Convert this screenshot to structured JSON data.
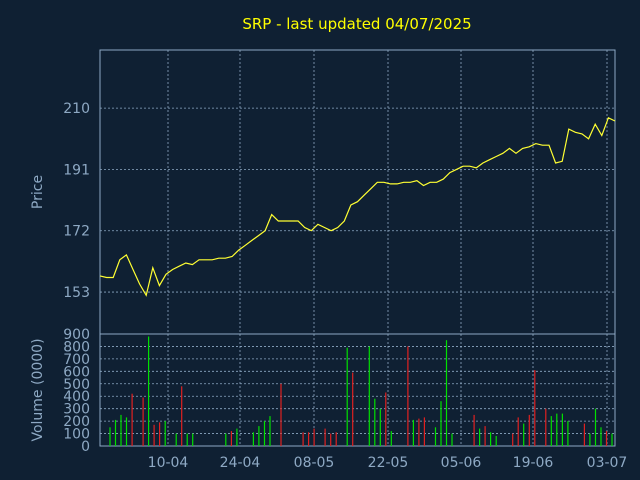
{
  "chart_data": [
    {
      "type": "line",
      "title": "SRP - last updated 04/07/2025",
      "ylabel": "Price",
      "ylim": [
        140,
        228
      ],
      "yticks": [
        153,
        172,
        191,
        210
      ],
      "xticks": [
        "10-04",
        "24-04",
        "08-05",
        "22-05",
        "05-06",
        "19-06",
        "03-07"
      ],
      "grid": true,
      "line_color": "#ffff33",
      "y": [
        158,
        157.5,
        157.5,
        163,
        164.5,
        160,
        155.5,
        152,
        160.5,
        155,
        158.5,
        160,
        161,
        162,
        161.5,
        163,
        163,
        163,
        163.5,
        163.5,
        164,
        166,
        167.5,
        169,
        170.5,
        172,
        177,
        175,
        175,
        175,
        175,
        173,
        172,
        174,
        173,
        172,
        173,
        175,
        180,
        181,
        183,
        185,
        187,
        187,
        186.5,
        186.5,
        187,
        187,
        187.5,
        186,
        187,
        187,
        188,
        190,
        191,
        192,
        192,
        191.5,
        193,
        194,
        195,
        196,
        197.5,
        196,
        197.5,
        198,
        199,
        198.5,
        198.5,
        193,
        193.5,
        203.5,
        202.5,
        202,
        200.5,
        205,
        201.5,
        207,
        206
      ]
    },
    {
      "type": "bar",
      "ylabel": "Volume (0000)",
      "ylim": [
        0,
        900
      ],
      "yticks": [
        0,
        100,
        200,
        300,
        400,
        500,
        600,
        700,
        800,
        900
      ],
      "grid": true,
      "up_color": "#00e000",
      "down_color": "#e02020",
      "values": [
        150,
        210,
        250,
        230,
        420,
        0,
        390,
        880,
        170,
        190,
        200,
        0,
        100,
        480,
        100,
        100,
        0,
        0,
        0,
        0,
        0,
        100,
        120,
        140,
        0,
        0,
        110,
        160,
        200,
        240,
        0,
        500,
        0,
        0,
        0,
        110,
        110,
        140,
        0,
        140,
        100,
        110,
        0,
        790,
        590,
        0,
        0,
        800,
        380,
        300,
        430,
        120,
        0,
        0,
        800,
        210,
        220,
        230,
        0,
        150,
        360,
        850,
        100,
        0,
        0,
        0,
        250,
        140,
        160,
        110,
        80,
        0,
        0,
        100,
        230,
        180,
        250,
        610,
        0,
        300,
        240,
        260,
        260,
        200,
        0,
        0,
        180,
        100,
        300,
        150,
        120,
        100
      ],
      "up": [
        true,
        true,
        true,
        true,
        false,
        false,
        false,
        true,
        false,
        false,
        true,
        false,
        true,
        false,
        true,
        true,
        false,
        false,
        false,
        false,
        false,
        true,
        false,
        true,
        false,
        false,
        true,
        true,
        true,
        true,
        false,
        false,
        false,
        false,
        false,
        false,
        false,
        false,
        false,
        false,
        false,
        false,
        false,
        true,
        false,
        false,
        false,
        true,
        true,
        true,
        false,
        true,
        false,
        false,
        false,
        true,
        false,
        false,
        false,
        true,
        true,
        true,
        true,
        false,
        false,
        false,
        false,
        true,
        false,
        true,
        true,
        false,
        false,
        false,
        false,
        true,
        false,
        false,
        false,
        false,
        true,
        true,
        true,
        true,
        false,
        false,
        false,
        true,
        true,
        true,
        false,
        true
      ]
    }
  ]
}
